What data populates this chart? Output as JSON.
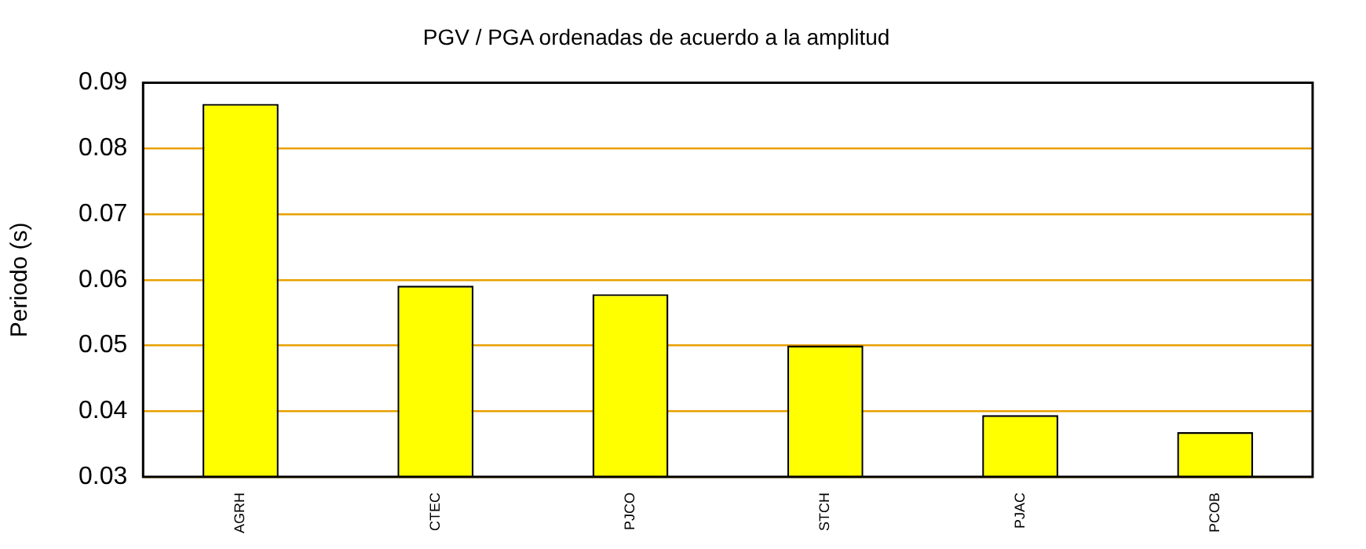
{
  "chart_data": {
    "type": "bar",
    "title": "PGV / PGA ordenadas de acuerdo a la amplitud",
    "ylabel": "Periodo (s)",
    "categories": [
      "AGRH",
      "CTEC",
      "PJCO",
      "STCH",
      "PJAC",
      "PCOB"
    ],
    "values": [
      0.0868,
      0.0591,
      0.0578,
      0.05,
      0.0394,
      0.0368
    ],
    "color": "#ffff00",
    "ylim": [
      0.03,
      0.09
    ],
    "yticks": [
      0.03,
      0.04,
      0.05,
      0.06,
      0.07,
      0.08,
      0.09
    ],
    "grid": "y",
    "legend": false
  }
}
